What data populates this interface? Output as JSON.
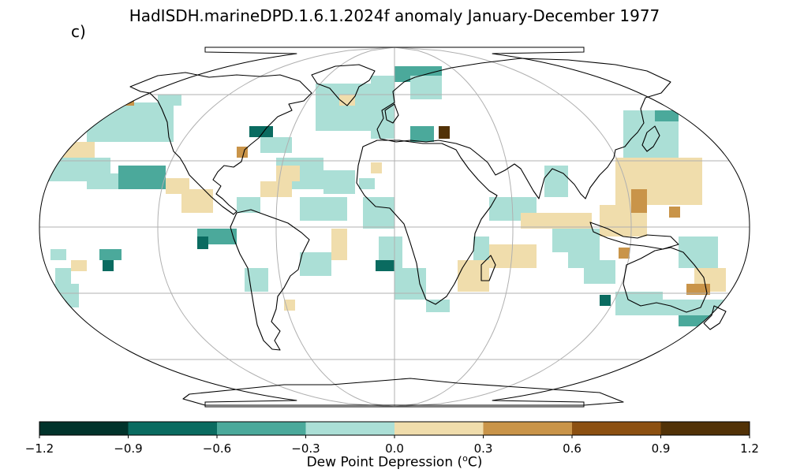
{
  "title": "HadISDH.marineDPD.1.6.1.2024f anomaly January-December 1977",
  "panel_label": "c)",
  "colorbar": {
    "ticks": [
      "−1.2",
      "−0.9",
      "−0.6",
      "−0.3",
      "0.0",
      "0.3",
      "0.6",
      "0.9",
      "1.2"
    ],
    "colors": [
      "#01332b",
      "#0a6b60",
      "#4ba99b",
      "#abdfd6",
      "#f0ddac",
      "#c99449",
      "#8c5011",
      "#523207"
    ],
    "bounds": [
      -1.2,
      -0.9,
      -0.6,
      -0.3,
      0.0,
      0.3,
      0.6,
      0.9,
      1.2
    ],
    "label_text": "Dew Point Depression (",
    "label_sup": "o",
    "label_unit": "C)"
  },
  "map": {
    "projection": "Robinson",
    "gridlines": true,
    "variable": "marine dew point depression anomaly",
    "period": "January-December 1977",
    "coverage": "ocean grid boxes only; mostly Northern Hemisphere and tropical shipping lanes"
  }
}
